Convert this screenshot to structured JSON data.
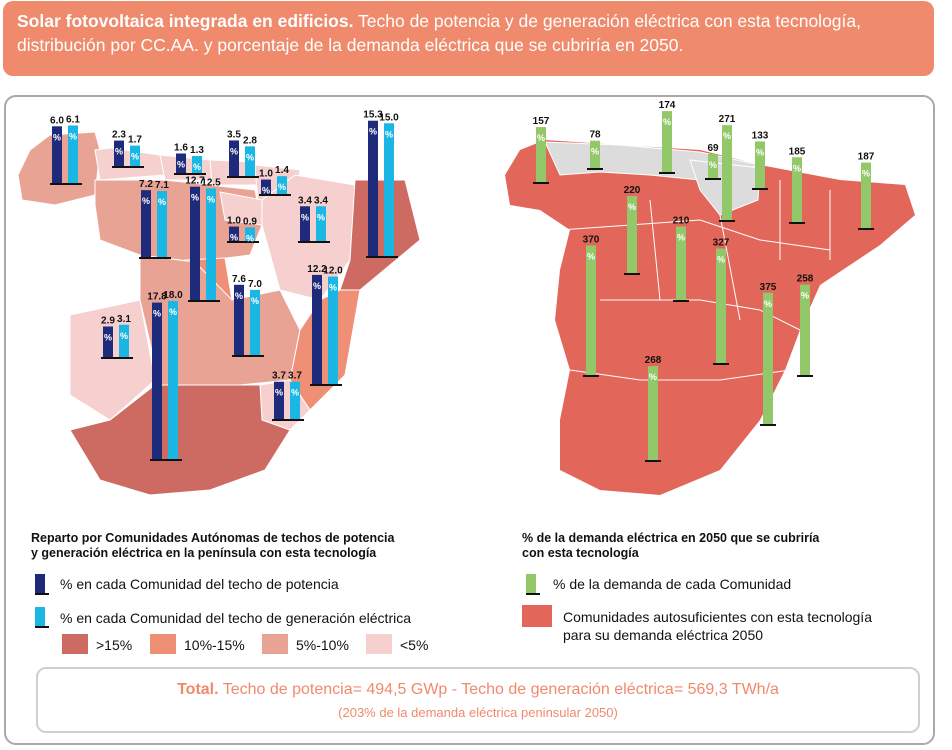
{
  "colors": {
    "header_bg": "#ef8a6d",
    "dark_bar": "#1e2a7a",
    "light_bar": "#1ab6e4",
    "green_bar": "#93c86a",
    "cat_gt15": "#cd6b63",
    "cat_10_15": "#ee8f76",
    "cat_5_10": "#e9a395",
    "cat_lt5": "#f6cfcf",
    "self_sufficient": "#e3665a",
    "total_text": "#ef8a6d",
    "gray_region": "#dcdcdc"
  },
  "header": {
    "title_bold": "Solar fotovoltaica integrada en edificios.",
    "title_rest": " Techo de potencia y de generación eléctrica con esta tecnología, distribución por CC.AA. y porcentaje de la demanda eléctrica que se cubriría en 2050."
  },
  "chart_data": [
    {
      "type": "bar",
      "title": "Reparto por Comunidades Autónomas de techos de potencia y generación eléctrica en la península con esta tecnología",
      "series": [
        {
          "name": "% en cada Comunidad del techo de potencia",
          "values": [
            6.0,
            2.3,
            1.6,
            3.5,
            1.0,
            1.0,
            15.3,
            7.2,
            12.7,
            3.4,
            2.9,
            7.6,
            12.2,
            17.8,
            3.7
          ]
        },
        {
          "name": "% en cada Comunidad del techo de generación eléctrica",
          "values": [
            6.1,
            1.7,
            1.3,
            2.8,
            1.4,
            0.9,
            15.0,
            7.1,
            12.5,
            3.4,
            3.1,
            7.0,
            12.0,
            18.0,
            3.7
          ]
        }
      ],
      "map_legend": [
        "&gt;15%",
        "10%-15%",
        "5%-10%",
        "&lt;5%"
      ]
    },
    {
      "type": "bar",
      "title": "% de la demanda eléctrica en 2050 que se cubriría con esta tecnología",
      "series": [
        {
          "name": "% de la demanda de cada Comunidad",
          "values": [
            157,
            78,
            174,
            69,
            271,
            133,
            185,
            187,
            220,
            210,
            327,
            370,
            375,
            258,
            268
          ]
        }
      ],
      "map_legend": [
        "Comunidades autosuficientes con esta tecnología para su demanda eléctrica 2050"
      ]
    }
  ],
  "left_legend": {
    "title_line1": "Reparto por Comunidades Autónomas de techos de potencia",
    "title_line2": "y generación eléctrica en la península con esta tecnología",
    "item_dark": "% en cada Comunidad del techo de potencia",
    "item_light": "% en cada Comunidad del techo de generación eléctrica",
    "cat_gt15": ">15%",
    "cat_10_15": "10%-15%",
    "cat_5_10": "5%-10%",
    "cat_lt5": "<5%"
  },
  "right_legend": {
    "title_line1": "% de la demanda eléctrica en 2050 que se cubriría",
    "title_line2": "con esta tecnología",
    "item_green": "% de la demanda de cada Comunidad",
    "item_region_line1": "Comunidades autosuficientes con esta tecnología",
    "item_region_line2": "para su demanda eléctrica 2050"
  },
  "total": {
    "label": "Total.",
    "text": " Techo de potencia= 494,5 GWp - Techo de generación eléctrica= 569,3 TWh/a",
    "sub": "(203% de la demanda eléctrica peninsular 2050)"
  },
  "pct_glyph": "%"
}
